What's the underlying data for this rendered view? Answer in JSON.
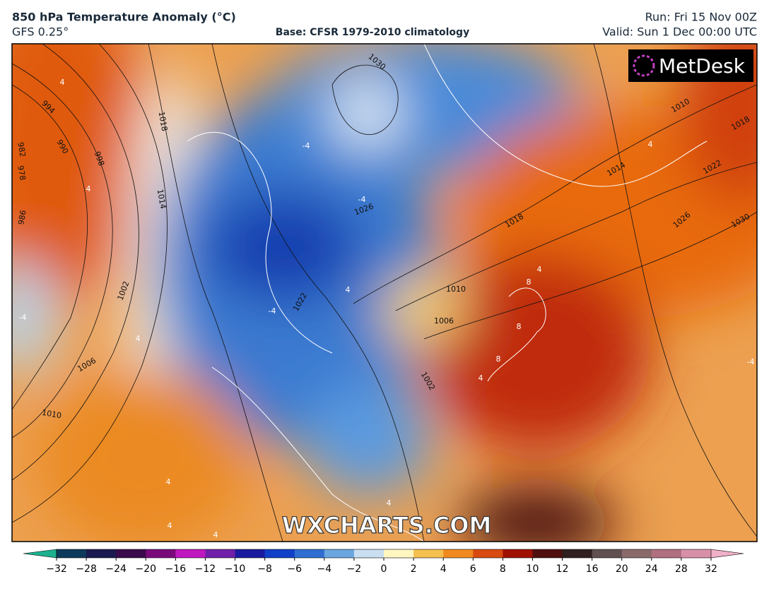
{
  "header": {
    "title": "850 hPa Temperature Anomaly (°C)",
    "model": "GFS 0.25°",
    "base": "Base: CFSR 1979-2010 climatology",
    "run": "Run: Fri 15 Nov 00Z",
    "valid": "Valid: Sun 1 Dec 00:00 UTC"
  },
  "map": {
    "logo": "MetDesk",
    "watermark": "WXCHARTS.COM",
    "isobar_labels": [
      994,
      990,
      982,
      978,
      998,
      986,
      1002,
      1006,
      1010,
      1014,
      1018,
      1030,
      1026,
      1022,
      1018,
      1010,
      1006,
      1002,
      1014,
      1010,
      1018,
      1022,
      1026,
      1030
    ],
    "anomaly_labels": [
      4,
      4,
      -4,
      -4,
      4,
      -4,
      4,
      -4,
      4,
      8,
      8,
      8,
      4,
      4,
      4,
      4,
      4,
      -4,
      4
    ]
  },
  "colorbar": {
    "ticks": [
      {
        "value": -32,
        "label": "−32"
      },
      {
        "value": -28,
        "label": "−28"
      },
      {
        "value": -24,
        "label": "−24"
      },
      {
        "value": -20,
        "label": "−20"
      },
      {
        "value": -16,
        "label": "−16"
      },
      {
        "value": -12,
        "label": "−12"
      },
      {
        "value": -10,
        "label": "−10"
      },
      {
        "value": -8,
        "label": "−8"
      },
      {
        "value": -6,
        "label": "−6"
      },
      {
        "value": -4,
        "label": "−4"
      },
      {
        "value": -2,
        "label": "−2"
      },
      0,
      2,
      4,
      6,
      8,
      10,
      12,
      16,
      20,
      24,
      28,
      32
    ],
    "colors": [
      "#0d3a5a",
      "#1a1a50",
      "#3a0a4a",
      "#7a0a7a",
      "#c018c0",
      "#7020a8",
      "#1a1aa0",
      "#1040c8",
      "#2f6ed0",
      "#6aa6e0",
      "#c9def0",
      "#fff6c0",
      "#f5c050",
      "#f08a20",
      "#d84a10",
      "#a01000",
      "#501010",
      "#302020",
      "#605050",
      "#8a6a6a",
      "#b07080",
      "#d890a8"
    ],
    "extend_colors": [
      "#1cb08f",
      "#f0b0c8"
    ]
  }
}
